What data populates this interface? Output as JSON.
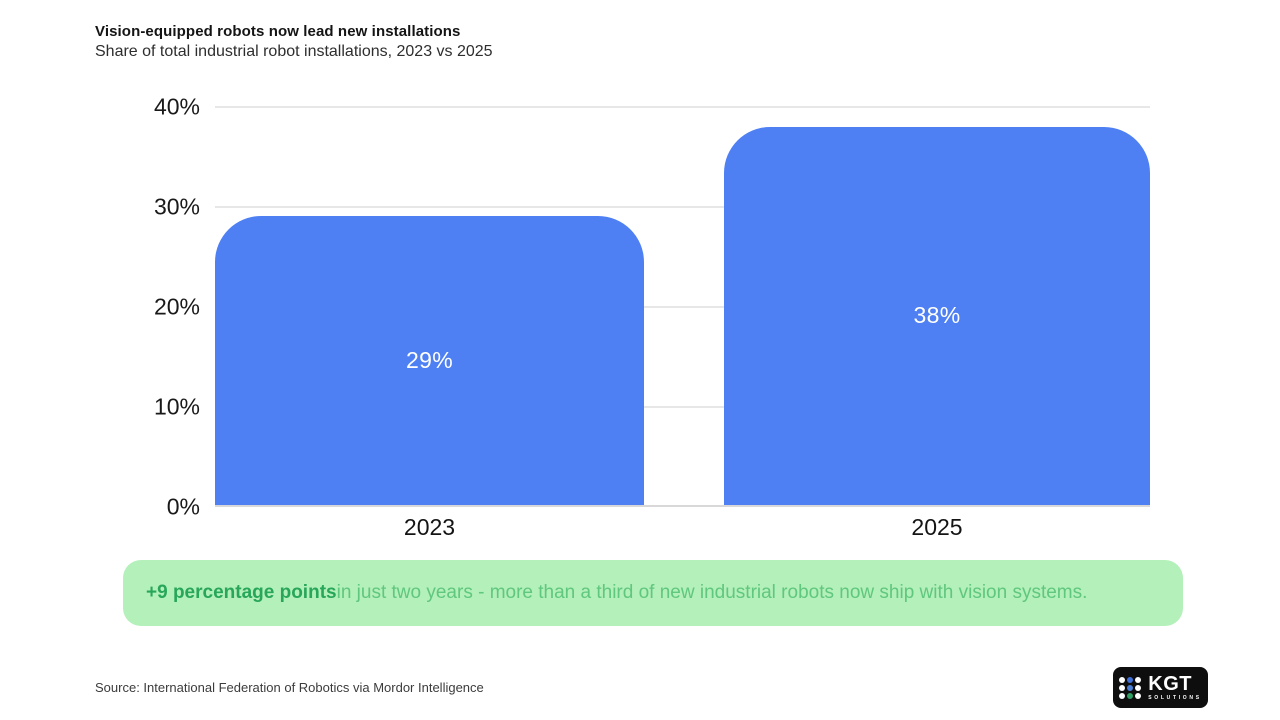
{
  "header": {
    "title": "Vision-equipped robots now lead new installations",
    "subtitle": "Share of total industrial robot installations, 2023 vs 2025"
  },
  "chart_data": {
    "type": "bar",
    "title": "Vision-equipped robots now lead new installations",
    "subtitle": "Share of total industrial robot installations, 2023 vs 2025",
    "categories": [
      "2023",
      "2025"
    ],
    "values": [
      29,
      38
    ],
    "value_labels": [
      "29%",
      "38%"
    ],
    "unit": "%",
    "ylim": [
      0,
      40
    ],
    "yticks": [
      0,
      10,
      20,
      30,
      40
    ],
    "ytick_labels": [
      "0%",
      "10%",
      "20%",
      "30%",
      "40%"
    ],
    "xlabel": "",
    "ylabel": "",
    "grid": "horizontal",
    "legend": "none",
    "bar_color": "#4e80f4",
    "label_color": "#ffffff"
  },
  "callout": {
    "highlight": "+9 percentage points",
    "text": " in just two years - more than a third of new industrial robots now ship with vision systems.",
    "bg_color": "#b3f0ba",
    "highlight_color": "#28a65a",
    "text_color": "#60c77e"
  },
  "footer": {
    "source": "Source: International Federation of Robotics via Mordor Intelligence"
  },
  "logo": {
    "name": "KGT",
    "subtext": "SOLUTIONS",
    "icon": "dot-grid-icon",
    "bg_color": "#0e0e0e",
    "dot_colors": [
      "#ffffff",
      "#3f6fd8",
      "#ffffff",
      "#ffffff",
      "#4b7fd6",
      "#ffffff",
      "#ffffff",
      "#2f9e63",
      "#ffffff"
    ]
  }
}
